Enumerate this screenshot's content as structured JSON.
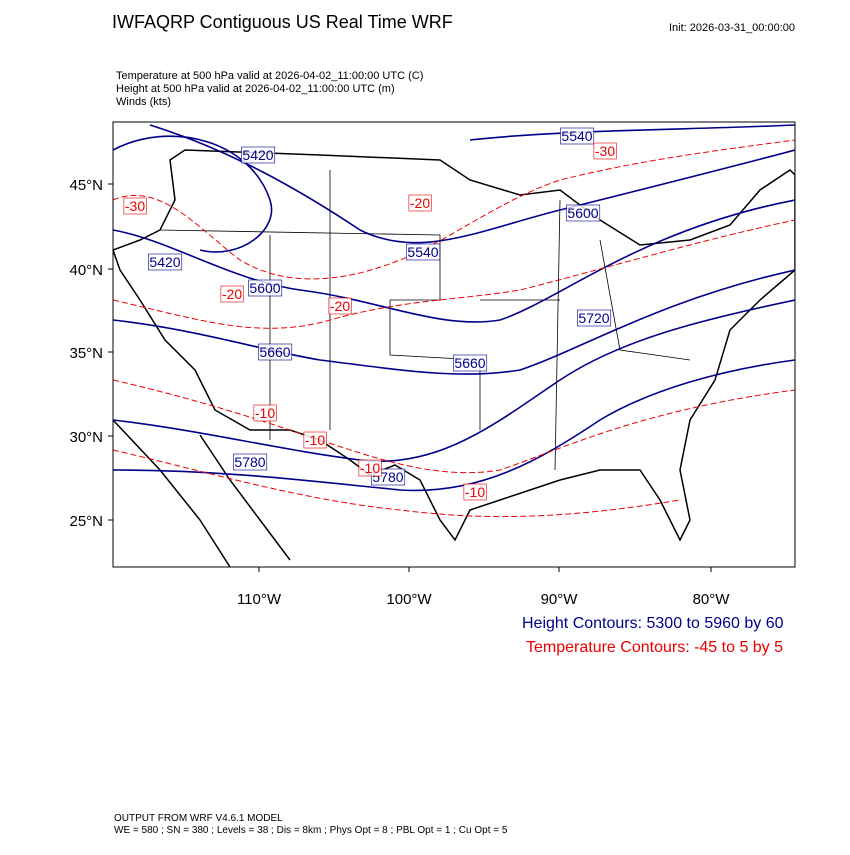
{
  "header": {
    "title": "IWFAQRP Contiguous US Real Time WRF",
    "init": "Init: 2026-03-31_00:00:00"
  },
  "fields": [
    "Temperature at 500 hPa valid at 2026-04-02_11:00:00 UTC   (C)",
    "Height at 500 hPa valid at 2026-04-02_11:00:00 UTC   (m)",
    "Winds    (kts)"
  ],
  "map": {
    "lat_labels": [
      "45°N",
      "40°N",
      "35°N",
      "30°N",
      "25°N"
    ],
    "lon_labels": [
      "110°W",
      "100°W",
      "90°W",
      "80°W"
    ],
    "height_labels": [
      "5540",
      "5420",
      "5600",
      "5540",
      "5420",
      "5600",
      "5660",
      "5660",
      "5720",
      "5780",
      "5780"
    ],
    "temperature_labels": [
      "-30",
      "-20",
      "-30",
      "-20",
      "-20",
      "-10",
      "-10",
      "-10",
      "-10"
    ]
  },
  "legend": [
    "Height Contours: 5300 to 5960 by 60",
    "Temperature Contours: -45 to 5 by 5"
  ],
  "footer": [
    "OUTPUT FROM WRF V4.6.1 MODEL",
    "WE = 580 ; SN = 380 ; Levels = 38 ; Dis = 8km ; Phys Opt = 8 ; PBL Opt = 1 ; Cu Opt = 5"
  ]
}
